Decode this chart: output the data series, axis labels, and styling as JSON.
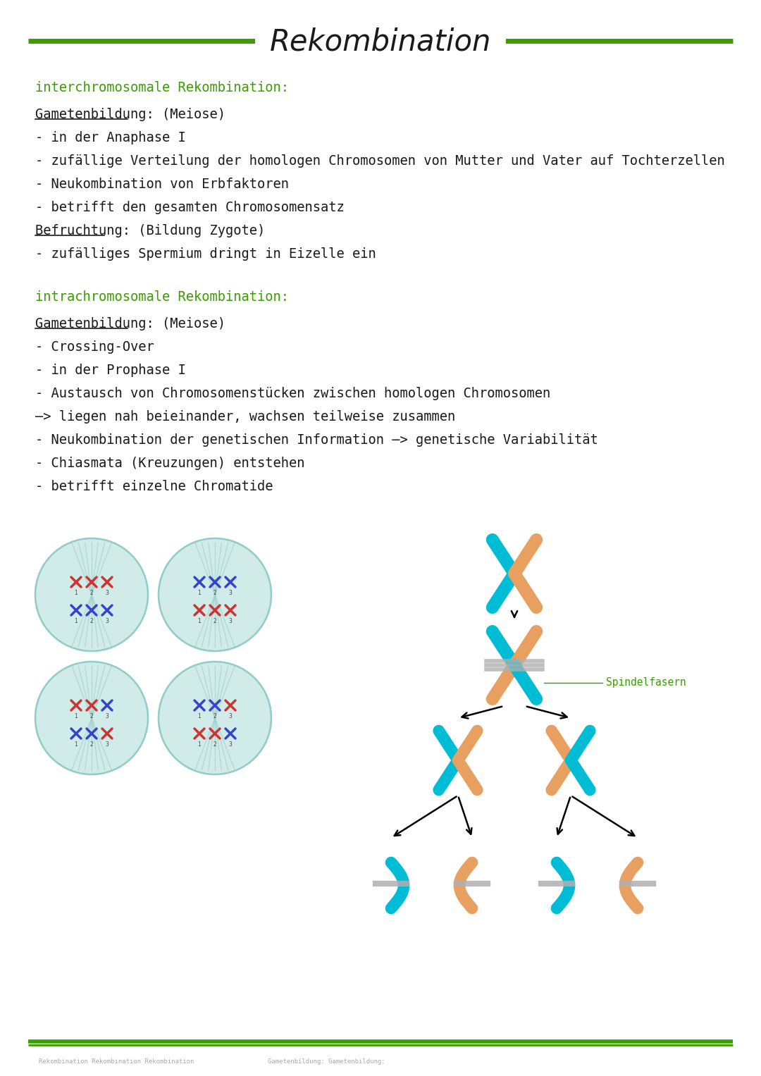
{
  "title": "Rekombination",
  "title_color": "#1a1a1a",
  "green_color": "#3a9e00",
  "dark_color": "#1a1a1a",
  "bg_color": "#ffffff",
  "section1_header": "interchromosomale Rekombination:",
  "section1_underline1": "Gametenbildung: (Meiose)",
  "section1_lines": [
    "- in der Anaphase I",
    "- zufällige Verteilung der homologen Chromosomen von Mutter und Vater auf Tochterzellen",
    "- Neukombination von Erbfaktoren",
    "- betrifft den gesamten Chromosomensatz",
    "Befruchtung: (Bildung Zygote)",
    "- zufälliges Spermium dringt in Eizelle ein"
  ],
  "section2_header": "intrachromosomale Rekombination:",
  "section2_underline1": "Gametenbildung: (Meiose)",
  "section2_lines": [
    "- Crossing-Over",
    "- in der Prophase I",
    "- Austausch von Chromosomenstücken zwischen homologen Chromosomen",
    "—> liegen nah beieinander, wachsen teilweise zusammen",
    "- Neukombination der genetischen Information —> genetische Variabilität",
    "- Chiasmata (Kreuzungen) entstehen",
    "- betrifft einzelne Chromatide"
  ],
  "cyan_color": "#00bcd4",
  "orange_color": "#e8a060",
  "gray_color": "#b0b0b0",
  "footer_line_color": "#3a9e00",
  "cell_fill": "#c8e8e4",
  "cell_border": "#90ccc8",
  "spindle_color": "#a0d0cc",
  "chr_red": "#cc3333",
  "chr_blue": "#3344cc",
  "spindel_label_color": "#3a9e00"
}
